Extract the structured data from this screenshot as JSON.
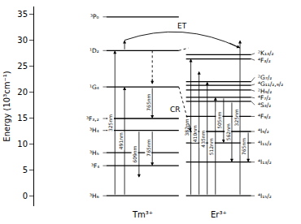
{
  "chart_data": {
    "type": "energy_levels",
    "ylabel": "Energy (10³cm⁻¹)",
    "ylim": [
      -2.0,
      36.5
    ],
    "yticks": [
      0,
      5,
      10,
      15,
      20,
      25,
      30,
      35
    ],
    "tick_labels": "y",
    "grid": false,
    "series": [
      {
        "name": "Tm³⁺",
        "values": [
          0,
          5.8,
          8.3,
          12.6,
          14.9,
          21.0,
          28.0,
          34.5
        ],
        "labels": [
          "³H₆",
          "³F₄",
          "³H₅",
          "³H₄",
          "³F₃,₂",
          "¹G₄",
          "¹D₂",
          "³P₀"
        ],
        "transitions": [
          {
            "label": "325nm",
            "from": 0,
            "to": 28.0
          },
          {
            "label": "491nm",
            "from": 0,
            "to": 21.0
          },
          {
            "label": "609nm",
            "from": 12.6,
            "to": 3.5
          },
          {
            "label": "765nm",
            "from": 21.0,
            "to": 14.9
          },
          {
            "label": "765nm",
            "from": 12.6,
            "to": 5.8
          },
          {
            "from": 28.0,
            "to": 21.5,
            "line_style": "dotted"
          }
        ]
      },
      {
        "name": "Er³⁺",
        "values": [
          0,
          6.5,
          10.2,
          12.4,
          15.3,
          18.2,
          19.0,
          20.4,
          21.3,
          22.0,
          26.4,
          27.2
        ],
        "labels": [
          "⁴I₁₅/₂",
          "⁴I₁₃/₂",
          "⁴I₁₁/₂",
          "⁴I₉/₂",
          "⁴F₉/₂",
          "⁴S₃/₂",
          "⁴F₇/₂",
          "²H₉/₂",
          "⁴G₁₁/₂,₉/₂",
          "²G₇/₂",
          "⁴F₃/₂",
          "²K₁₃/₂"
        ],
        "transitions": [
          {
            "label": "382nm",
            "from": 0,
            "to": 26.4
          },
          {
            "label": "410nm",
            "from": 0,
            "to": 24.0
          },
          {
            "label": "435nm",
            "from": 0,
            "to": 22.0
          },
          {
            "label": "512nm",
            "from": 0,
            "to": 19.0
          },
          {
            "label": "505nm",
            "from": 19.0,
            "to": 10.2
          },
          {
            "label": "562nm",
            "from": 18.2,
            "to": 6.5
          },
          {
            "label": "325nm",
            "from": 0,
            "to": 30.0
          },
          {
            "label": "765nm",
            "from": 12.4,
            "to": 6.5
          }
        ]
      }
    ],
    "transfers": [
      {
        "label": "ET",
        "from": 28.0,
        "via": 30.0,
        "to": 28.5,
        "line_style": "solid"
      },
      {
        "label": "CR",
        "from": 21.0,
        "to": 12.4,
        "line_style": "dotted"
      },
      {
        "from": 28.0,
        "to": 28.5,
        "line_style": "dotted"
      }
    ]
  }
}
